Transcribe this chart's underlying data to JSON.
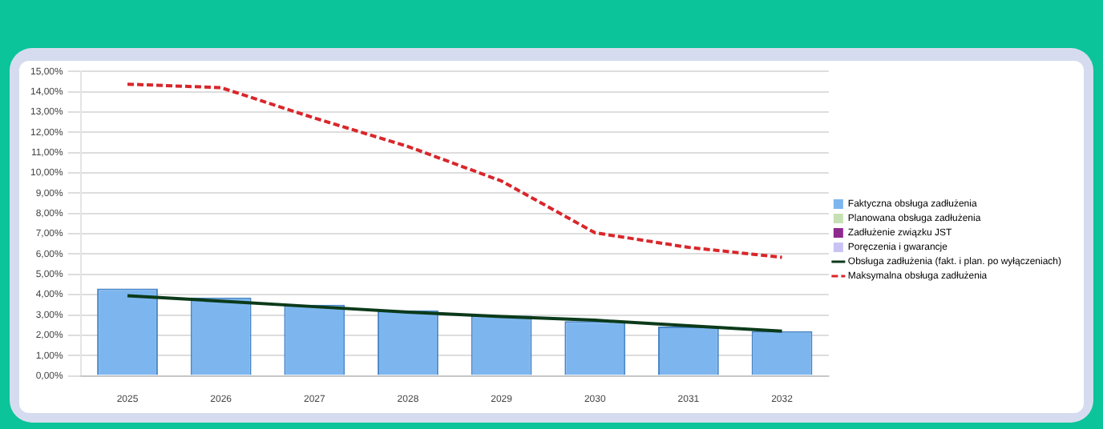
{
  "chart_data": {
    "type": "bar",
    "categories": [
      "2025",
      "2026",
      "2027",
      "2028",
      "2029",
      "2030",
      "2031",
      "2032"
    ],
    "series": [
      {
        "name": "Faktyczna obsługa zadłużenia",
        "color": "#7db6ef",
        "values": [
          4.3,
          3.86,
          3.5,
          3.23,
          2.96,
          2.7,
          2.43,
          2.2
        ]
      },
      {
        "name": "Planowana obsługa zadłużenia",
        "color": "#c6e0b4",
        "values": [
          null,
          null,
          null,
          null,
          null,
          null,
          null,
          null
        ]
      },
      {
        "name": "Zadłużenie związku JST",
        "color": "#8e2a8e",
        "values": [
          null,
          null,
          null,
          null,
          null,
          null,
          null,
          null
        ]
      },
      {
        "name": "Poręczenia i gwarancje",
        "color": "#c9c3f5",
        "values": [
          null,
          null,
          null,
          null,
          null,
          null,
          null,
          null
        ]
      },
      {
        "name": "Obsługa zadłużenia (fakt. i plan. po wyłączeniach)",
        "type": "line",
        "color": "#0b3a1a",
        "line_style": "solid",
        "values": [
          3.95,
          3.68,
          3.41,
          3.14,
          2.92,
          2.74,
          2.47,
          2.2
        ]
      },
      {
        "name": "Maksymalna obsługa zadłużenia",
        "type": "line",
        "color": "#d9262b",
        "line_style": "dashed",
        "values": [
          14.37,
          14.2,
          12.7,
          11.3,
          9.6,
          7.05,
          6.33,
          5.84
        ]
      }
    ],
    "ylim": [
      0,
      15
    ],
    "yticks": [
      {
        "value": 0,
        "label": "0,00%"
      },
      {
        "value": 1,
        "label": "1,00%"
      },
      {
        "value": 2,
        "label": "2,00%"
      },
      {
        "value": 3,
        "label": "3,00%"
      },
      {
        "value": 4,
        "label": "4,00%"
      },
      {
        "value": 5,
        "label": "5,00%"
      },
      {
        "value": 6,
        "label": "6,00%"
      },
      {
        "value": 7,
        "label": "7,00%"
      },
      {
        "value": 8,
        "label": "8,00%"
      },
      {
        "value": 9,
        "label": "9,00%"
      },
      {
        "value": 10,
        "label": "10,00%"
      },
      {
        "value": 11,
        "label": "11,00%"
      },
      {
        "value": 12,
        "label": "12,00%"
      },
      {
        "value": 13,
        "label": "13,00%"
      },
      {
        "value": 14,
        "label": "14,00%"
      },
      {
        "value": 15,
        "label": "15,00%"
      }
    ],
    "grid": "y",
    "legend": "right",
    "marker": "none"
  }
}
